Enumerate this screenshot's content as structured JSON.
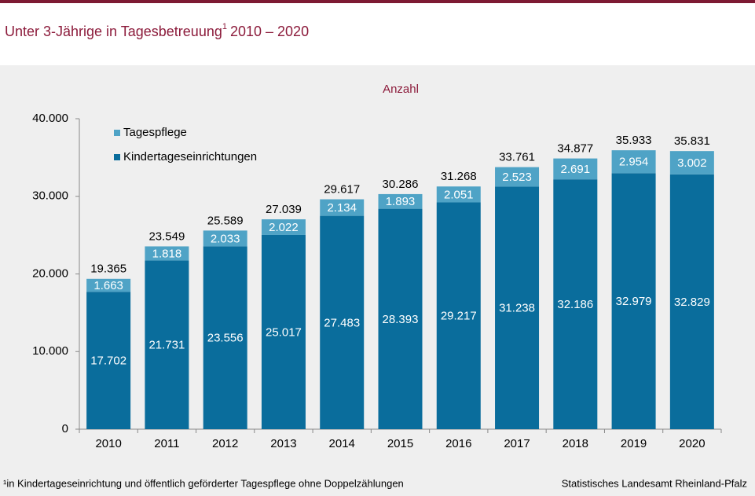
{
  "chart_data": {
    "type": "stacked_bar",
    "title": "Unter 3-Jährige in Tagesbetreuung",
    "title_sup": "1",
    "title_suffix": "2010 – 2020",
    "subtitle": "Anzahl",
    "categories": [
      "2010",
      "2011",
      "2012",
      "2013",
      "2014",
      "2015",
      "2016",
      "2017",
      "2018",
      "2019",
      "2020"
    ],
    "series": [
      {
        "name": "Kindertageseinrichtungen",
        "color": "#0a6d9c",
        "values": [
          17702,
          21731,
          23556,
          25017,
          27483,
          28393,
          29217,
          31238,
          32186,
          32979,
          32829
        ],
        "value_labels": [
          "17.702",
          "21.731",
          "23.556",
          "25.017",
          "27.483",
          "28.393",
          "29.217",
          "31.238",
          "32.186",
          "32.979",
          "32.829"
        ]
      },
      {
        "name": "Tagespflege",
        "color": "#4fa3c6",
        "values": [
          1663,
          1818,
          2033,
          2022,
          2134,
          1893,
          2051,
          2523,
          2691,
          2954,
          3002
        ],
        "value_labels": [
          "1.663",
          "1.818",
          "2.033",
          "2.022",
          "2.134",
          "1.893",
          "2.051",
          "2.523",
          "2.691",
          "2.954",
          "3.002"
        ]
      }
    ],
    "totals": {
      "values": [
        19365,
        23549,
        25589,
        27039,
        29617,
        30286,
        31268,
        33761,
        34877,
        35933,
        35831
      ],
      "value_labels": [
        "19.365",
        "23.549",
        "25.589",
        "27.039",
        "29.617",
        "30.286",
        "31.268",
        "33.761",
        "34.877",
        "35.933",
        "35.831"
      ]
    },
    "ylim": [
      0,
      40000
    ],
    "yticks": [
      0,
      {
        "value": 10000,
        "label": "10.000"
      },
      {
        "value": 20000,
        "label": "20.000"
      },
      {
        "value": 30000,
        "label": "30.000"
      },
      {
        "value": 40000,
        "label": "40.000"
      }
    ],
    "footnote": "¹in Kindertageseinrichtung und öffentlich geförderter Tagespflege ohne Doppelzählungen",
    "source": "Statistisches Landesamt Rheinland-Pfalz"
  }
}
